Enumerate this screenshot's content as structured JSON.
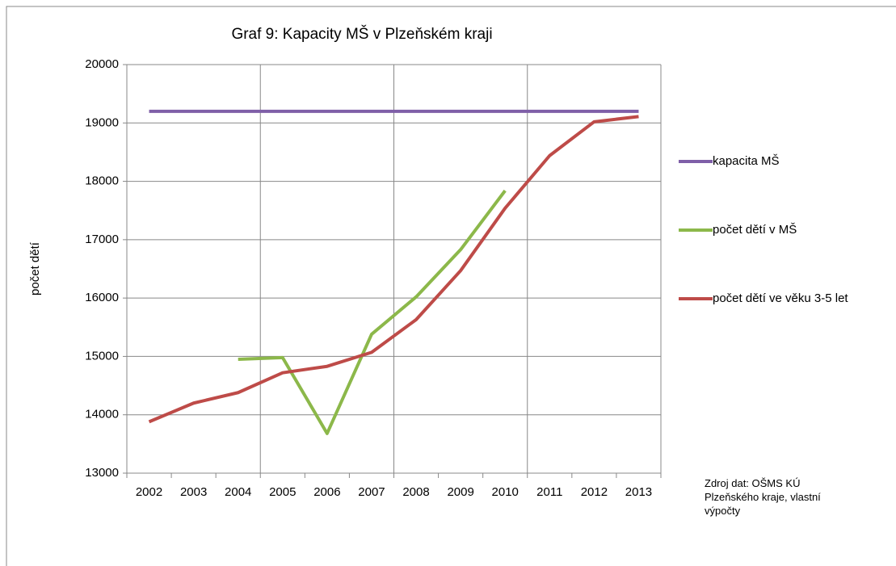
{
  "chart_data": {
    "type": "line",
    "title": "Graf 9: Kapacity MŠ v Plzeňském kraji",
    "y_label": "počet dětí",
    "source": [
      "Zdroj dat:  OŠMS KÚ",
      "Plzeňského kraje, vlastní",
      "výpočty"
    ],
    "categories": [
      "2002",
      "2003",
      "2004",
      "2005",
      "2006",
      "2007",
      "2008",
      "2009",
      "2010",
      "2011",
      "2012",
      "2013"
    ],
    "series": [
      {
        "name": "kapacita MŠ",
        "color": "#7f5fa8",
        "values": [
          19200,
          19200,
          19200,
          19200,
          19200,
          19200,
          19200,
          19200,
          19200,
          19200,
          19200,
          19200
        ]
      },
      {
        "name": "počet dětí v MŠ",
        "color": "#8cb84a",
        "values": [
          null,
          null,
          14950,
          14980,
          13680,
          15380,
          16020,
          16830,
          17840,
          null,
          null,
          null
        ]
      },
      {
        "name": "počet dětí ve věku 3-5 let",
        "color": "#be4b48",
        "values": [
          13880,
          14200,
          14380,
          14720,
          14830,
          15070,
          15630,
          16470,
          17540,
          18440,
          19020,
          19110
        ]
      }
    ],
    "ylim": [
      13000,
      20000
    ],
    "yticks": [
      13000,
      14000,
      15000,
      16000,
      17000,
      18000,
      19000,
      20000
    ],
    "grid": true,
    "legend": "right"
  }
}
